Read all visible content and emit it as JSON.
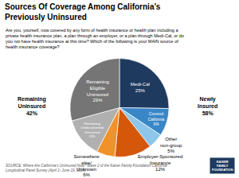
{
  "chart_data": {
    "type": "pie",
    "title": "Sources Of Coverage Among California’s Previously Uninsured",
    "subtitle": "Are you, yourself, now covered by any form of health insurance or health plan including a private health insurance plan, a plan through an employer, or a plan through Medi-Cal, or do you not have health insurance at this time?  Which of the following is your MAIN source of health insurance coverage?",
    "source": "SOURCE:  Where Are California’s Uninsured Now? Wave 2 of the Kaiser Family Foundation California Longitudinal Panel Survey (April 1- June 19, 2014)",
    "categories": [
      "Medi-Cal",
      "Covered California",
      "Other non-group",
      "Employer-Sponsored Insurance",
      "Somewhere else/ Unknown",
      "Remaining Undocumented Uninsured",
      "Remaining Eligible Uninsured"
    ],
    "values": [
      25,
      9,
      5,
      12,
      6,
      13,
      29
    ],
    "value_labels": [
      "25%",
      "9%",
      "5%",
      "12%",
      "6%",
      "13%",
      "29%"
    ],
    "colors": [
      "#1e3a5f",
      "#3a87c8",
      "#8dc6e8",
      "#d4570a",
      "#f0922a",
      "#b0b0b0",
      "#757575"
    ],
    "data_labels": true,
    "annotations": [
      "Remaining Uninsured 42%",
      "Newly Insured 58%",
      "KAISER FAMILY FOUNDATION"
    ]
  }
}
